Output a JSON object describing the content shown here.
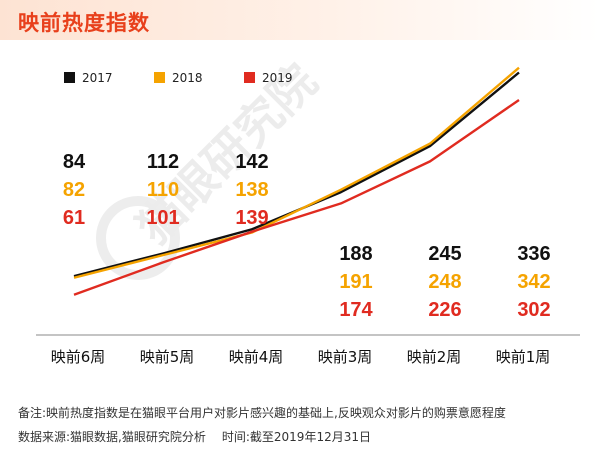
{
  "title": "映前热度指数",
  "watermark": "猫眼研究院",
  "chart_data": {
    "type": "line",
    "categories": [
      "映前6周",
      "映前5周",
      "映前4周",
      "映前3周",
      "映前2周",
      "映前1周"
    ],
    "series": [
      {
        "name": "2017",
        "color": "#111111",
        "values": [
          84,
          112,
          142,
          188,
          245,
          336
        ]
      },
      {
        "name": "2018",
        "color": "#f5a300",
        "values": [
          82,
          110,
          138,
          191,
          248,
          342
        ]
      },
      {
        "name": "2019",
        "color": "#e02b20",
        "values": [
          61,
          101,
          139,
          174,
          226,
          302
        ]
      }
    ],
    "legend_position": "top-left",
    "grid": false
  },
  "notes": {
    "line1": "备注:映前热度指数是在猫眼平台用户对影片感兴趣的基础上,反映观众对影片的购票意愿程度",
    "source": "数据来源:猫眼数据,猫眼研究院分析",
    "time": "时间:截至2019年12月31日"
  }
}
